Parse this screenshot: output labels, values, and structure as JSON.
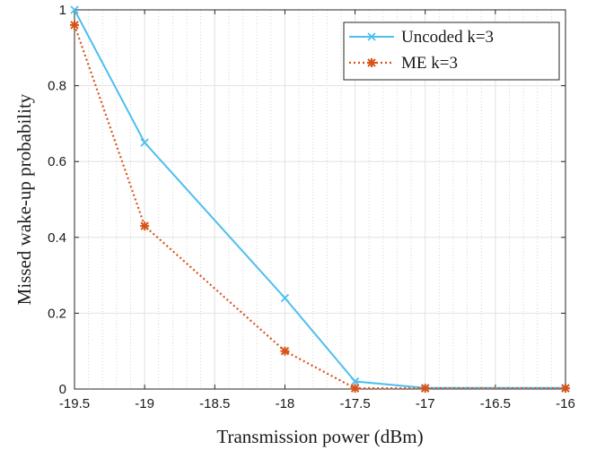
{
  "chart_data": {
    "type": "line",
    "title": "",
    "xlabel": "Transmission power (dBm)",
    "ylabel": "Missed wake-up probability",
    "xlim": [
      -19.5,
      -16
    ],
    "ylim": [
      0,
      1
    ],
    "x_ticks": [
      -19.5,
      -19,
      -18.5,
      -18,
      -17.5,
      -17,
      -16.5,
      -16
    ],
    "x_tick_labels": [
      "-19.5",
      "-19",
      "-18.5",
      "-18",
      "-17.5",
      "-17",
      "-16.5",
      "-16"
    ],
    "y_ticks": [
      0,
      0.2,
      0.4,
      0.6,
      0.8,
      1
    ],
    "y_tick_labels": [
      "0",
      "0.2",
      "0.4",
      "0.6",
      "0.8",
      "1"
    ],
    "grid": true,
    "minor_grid": true,
    "legend_position": "top-right",
    "series": [
      {
        "name": "Uncoded k=3",
        "color": "#4DBEEE",
        "line_style": "solid",
        "marker": "x",
        "x": [
          -19.5,
          -19,
          -18,
          -17.5,
          -17,
          -16
        ],
        "y": [
          1.0,
          0.65,
          0.24,
          0.02,
          0.003,
          0.003
        ]
      },
      {
        "name": "ME k=3",
        "color": "#D95319",
        "line_style": "dotted",
        "marker": "asterisk",
        "x": [
          -19.5,
          -19,
          -18,
          -17.5,
          -17,
          -16
        ],
        "y": [
          0.96,
          0.43,
          0.1,
          0.002,
          0.002,
          0.002
        ]
      }
    ]
  }
}
